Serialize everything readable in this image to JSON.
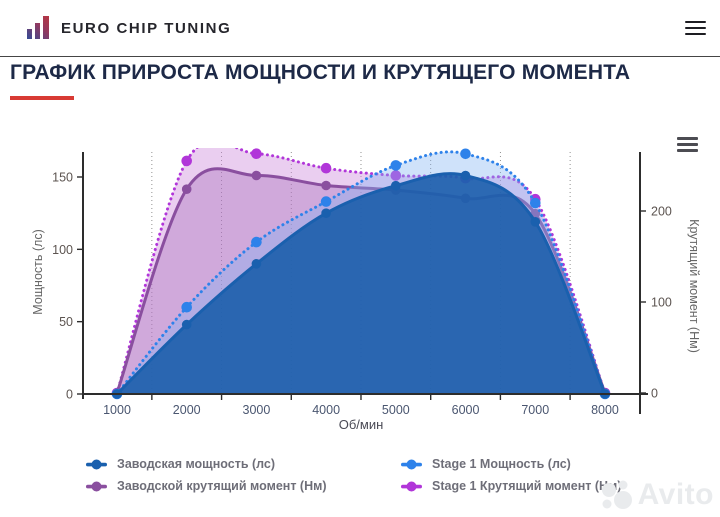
{
  "header": {
    "brand": "EURO CHIP TUNING"
  },
  "page": {
    "title": "ГРАФИК ПРИРОСТА МОЩНОСТИ И КРУТЯЩЕГО МОМЕНТА"
  },
  "watermark": {
    "text": "Avito"
  },
  "colors": {
    "accent_red": "#d83a34",
    "title_navy": "#1d2947",
    "axis_line": "#2d2d2d",
    "grid_dotted": "#707070",
    "y_tick_label": "#5c5450",
    "x_tick_label": "#4a5670",
    "axis_title": "#666666",
    "legend_text": "#6e6e78",
    "logo_red": "#c0353a",
    "logo_blue": "#2b4d9b"
  },
  "chart_data": {
    "type": "line",
    "title": "",
    "xlabel": "Об/мин",
    "x": [
      1000,
      2000,
      3000,
      4000,
      5000,
      6000,
      7000,
      8000
    ],
    "x_gridlines": [
      1500,
      2500,
      3500,
      4500,
      5500,
      6500,
      7500
    ],
    "grid": "dotted-vertical",
    "legend_position": "bottom",
    "axes": {
      "left": {
        "label": "Мощность (лс)",
        "ticks": [
          0,
          50,
          100,
          150
        ],
        "max": 168
      },
      "right": {
        "label": "Крутящий момент (Нм)",
        "ticks": [
          0,
          100,
          200
        ],
        "max": 267
      }
    },
    "series": [
      {
        "name": "Заводская мощность (лс)",
        "axis": "left",
        "line": "solid",
        "color": "#1a60ae",
        "fill": "rgba(23,92,170,0.88)",
        "values": [
          0,
          48,
          90,
          125,
          144,
          151,
          119,
          0
        ]
      },
      {
        "name": "Stage 1 Мощность (лс)",
        "axis": "left",
        "line": "dotted",
        "color": "#2e82ea",
        "fill": "rgba(130,180,242,0.38)",
        "values": [
          0,
          60,
          105,
          133,
          158,
          166,
          132,
          0
        ]
      },
      {
        "name": "Заводской крутящий момент (Нм)",
        "axis": "right",
        "line": "solid",
        "color": "#8a4f9f",
        "fill": "rgba(158,100,180,0.34)",
        "values": [
          0,
          224,
          239,
          228,
          223,
          214,
          197,
          0
        ]
      },
      {
        "name": "Stage 1 Крутящий момент (Нм)",
        "axis": "right",
        "line": "dotted",
        "color": "#b136d9",
        "fill": "rgba(204,138,220,0.42)",
        "values": [
          0,
          255,
          263,
          247,
          239,
          236,
          213,
          0
        ]
      }
    ]
  }
}
